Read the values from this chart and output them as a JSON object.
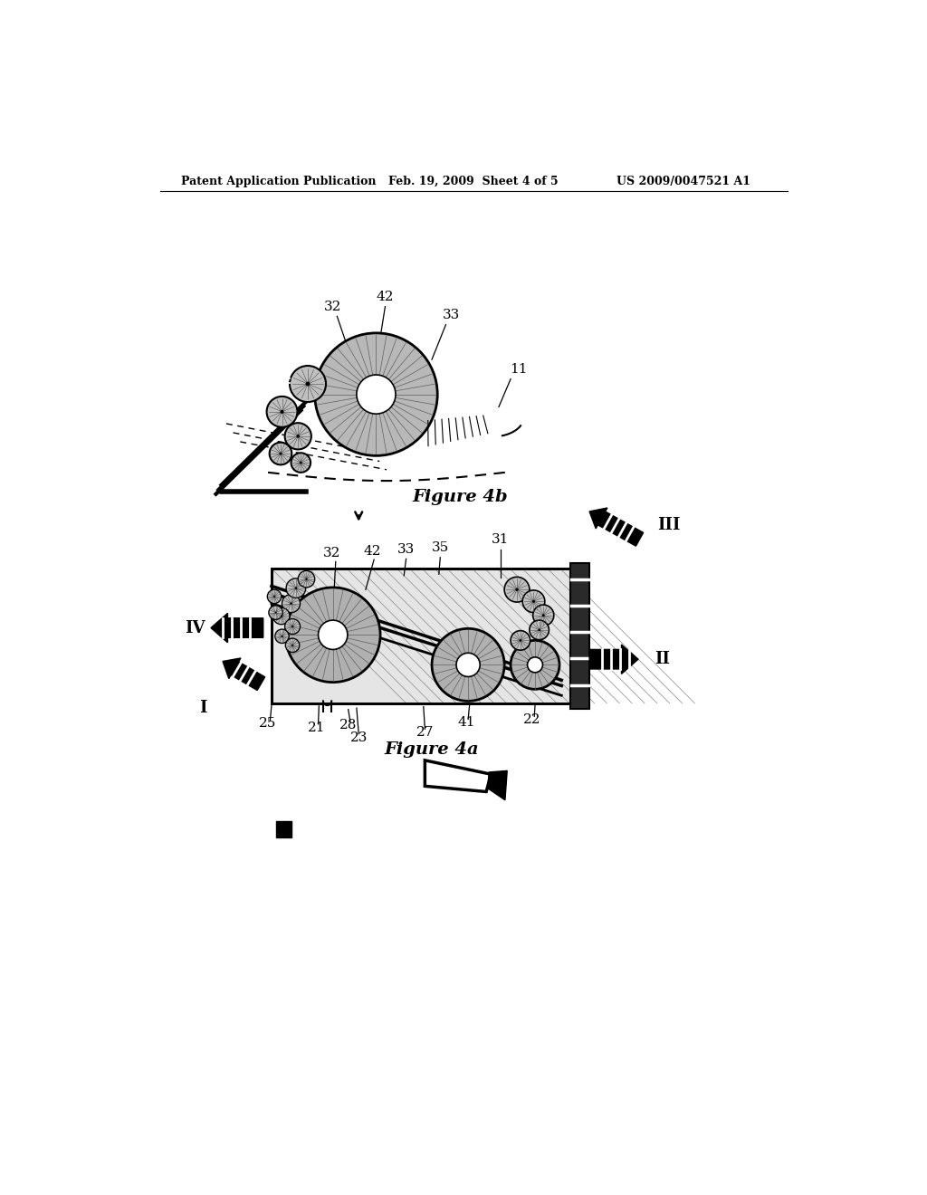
{
  "bg_color": "#ffffff",
  "header_left": "Patent Application Publication",
  "header_mid": "Feb. 19, 2009  Sheet 4 of 5",
  "header_right": "US 2009/0047521 A1",
  "fig4b_caption": "Figure 4b",
  "fig4a_caption": "Figure 4a",
  "text_color": "#000000",
  "label_fs": 11,
  "caption_fs": 14,
  "header_fs": 9,
  "roman_fs": 13
}
